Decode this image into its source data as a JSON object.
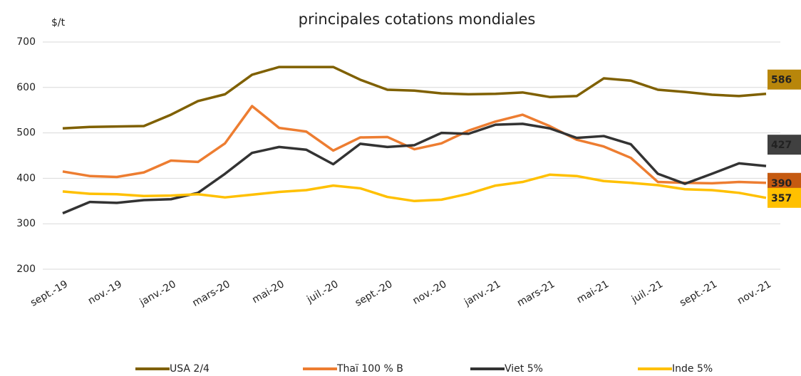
{
  "chart_data": {
    "type": "line",
    "title": "principales cotations mondiales",
    "y_unit": "$/t",
    "categories": [
      "sept.-19",
      null,
      "nov.-19",
      null,
      "janv.-20",
      null,
      "mars-20",
      null,
      "mai-20",
      null,
      "juil.-20",
      null,
      "sept.-20",
      null,
      "nov.-20",
      null,
      "janv.-21",
      null,
      "mars-21",
      null,
      "mai-21",
      null,
      "juil.-21",
      null,
      "sept.-21",
      null,
      "nov.-21"
    ],
    "series": [
      {
        "name": "USA 2/4",
        "color": "#7f6000",
        "label_color": "#b8860b",
        "label_text_color": "#ffffff",
        "values": [
          510,
          513,
          514,
          515,
          540,
          570,
          585,
          628,
          645,
          645,
          645,
          617,
          595,
          593,
          587,
          585,
          586,
          589,
          579,
          581,
          620,
          615,
          595,
          590,
          584,
          581,
          586
        ]
      },
      {
        "name": "Thaï 100 % B",
        "color": "#ed7d31",
        "label_color": "#c55a11",
        "label_text_color": "#ffffff",
        "values": [
          415,
          405,
          403,
          413,
          439,
          436,
          477,
          559,
          511,
          503,
          461,
          490,
          491,
          464,
          477,
          505,
          525,
          540,
          515,
          485,
          470,
          445,
          392,
          390,
          389,
          392,
          390
        ]
      },
      {
        "name": "Viet 5%",
        "color": "#333333",
        "label_color": "#404040",
        "label_text_color": "#ffffff",
        "values": [
          323,
          348,
          346,
          352,
          354,
          368,
          410,
          456,
          469,
          463,
          431,
          476,
          469,
          473,
          500,
          498,
          518,
          520,
          510,
          489,
          493,
          475,
          410,
          388,
          410,
          433,
          427
        ]
      },
      {
        "name": "Inde 5%",
        "color": "#ffc000",
        "label_color": "#ffc000",
        "label_text_color": "#000000",
        "values": [
          371,
          366,
          365,
          361,
          362,
          365,
          358,
          364,
          370,
          374,
          384,
          378,
          359,
          350,
          353,
          366,
          384,
          392,
          408,
          405,
          394,
          390,
          385,
          376,
          374,
          368,
          357
        ]
      }
    ],
    "ylim": [
      200,
      700
    ],
    "yticks": [
      200,
      300,
      400,
      500,
      600,
      700
    ],
    "grid": true,
    "legend": "bottom"
  }
}
